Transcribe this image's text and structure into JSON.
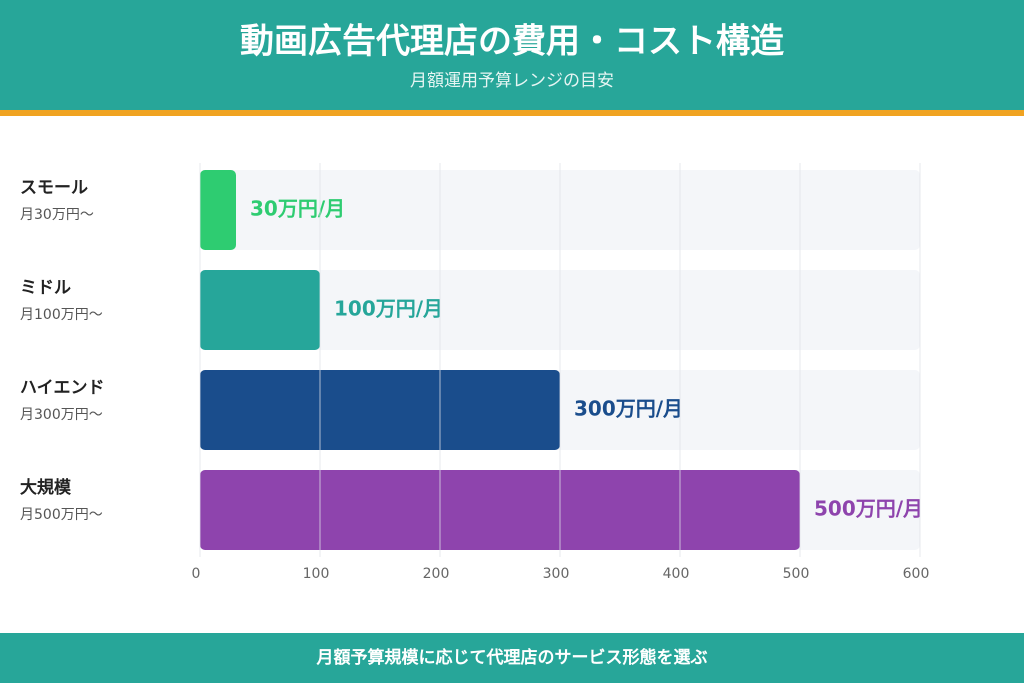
{
  "chart_data": {
    "type": "hbar",
    "title": "動画広告代理店の費用・コスト構造",
    "subtitle": "月額運用予算レンジの目安",
    "footer": "月額予算規模に応じて代理店のサービス形態を選ぶ",
    "categories": [
      "スモール",
      "ミドル",
      "ハイエンド",
      "大規模"
    ],
    "category_sublabels": [
      "月30万円〜",
      "月100万円〜",
      "月300万円〜",
      "月500万円〜"
    ],
    "values": [
      30,
      100,
      300,
      500
    ],
    "value_labels": [
      "30万円/月",
      "100万円/月",
      "300万円/月",
      "500万円/月"
    ],
    "colors": [
      "#2ecc71",
      "#26a69a",
      "#1a4d8c",
      "#8e44ad"
    ],
    "xlim": [
      0,
      600
    ],
    "xticks": [
      0,
      100,
      200,
      300,
      400,
      500,
      600
    ],
    "grid": true
  }
}
